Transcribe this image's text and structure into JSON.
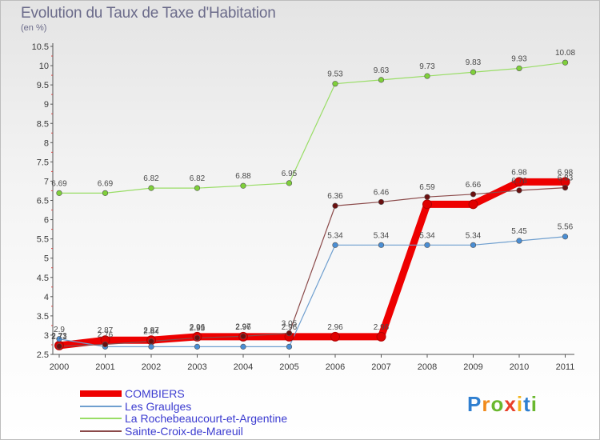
{
  "title": "Evolution du Taux de Taxe d'Habitation",
  "subtitle": "(en %)",
  "logo": {
    "text": "Proxiti",
    "colors": [
      "#2f7fd0",
      "#f08a1c",
      "#6ab82e",
      "#e8402a",
      "#f3b51c",
      "#2f7fd0",
      "#6ab82e"
    ]
  },
  "chart_data": {
    "type": "line",
    "x": [
      "2000",
      "2001",
      "2002",
      "2003",
      "2004",
      "2005",
      "2006",
      "2007",
      "2008",
      "2009",
      "2010",
      "2011"
    ],
    "ylim": [
      2.5,
      10.5
    ],
    "yticks": [
      "2.5",
      "3",
      "3.5",
      "4",
      "4.5",
      "5",
      "5.5",
      "6",
      "6.5",
      "7",
      "7.5",
      "8",
      "8.5",
      "9",
      "9.5",
      "10",
      "10.5"
    ],
    "grid": false,
    "legend_position": "bottom-left",
    "series": [
      {
        "name": "COMBIERS",
        "color": "#ee0000",
        "width": 9,
        "values": [
          2.73,
          2.87,
          2.87,
          2.96,
          2.96,
          2.96,
          2.96,
          2.96,
          6.4,
          6.4,
          6.98,
          6.98
        ],
        "labels": [
          "2.73",
          "2.87",
          "2.87",
          "2.96",
          "2.96",
          "2.96",
          "2.96",
          "2.96",
          "",
          "",
          "6.98",
          "6.98"
        ]
      },
      {
        "name": "Les Graulges",
        "color": "#6f9fcf",
        "width": 1.2,
        "values": [
          2.9,
          2.7,
          2.7,
          2.7,
          2.7,
          2.7,
          5.34,
          5.34,
          5.34,
          5.34,
          5.45,
          5.56
        ],
        "labels": [
          "2.9",
          "",
          "",
          "",
          "",
          "",
          "5.34",
          "5.34",
          "5.34",
          "5.34",
          "5.45",
          "5.56"
        ]
      },
      {
        "name": "La Rochebeaucourt-et-Argentine",
        "color": "#99dd66",
        "width": 1.2,
        "values": [
          6.69,
          6.69,
          6.82,
          6.82,
          6.88,
          6.95,
          9.53,
          9.63,
          9.73,
          9.83,
          9.93,
          10.08
        ],
        "labels": [
          "6.69",
          "6.69",
          "6.82",
          "6.82",
          "6.88",
          "6.95",
          "9.53",
          "9.63",
          "9.73",
          "9.83",
          "9.93",
          "10.08"
        ]
      },
      {
        "name": "Sainte-Croix-de-Mareuil",
        "color": "#8b4a4a",
        "width": 1.2,
        "values": [
          2.71,
          2.76,
          2.84,
          2.93,
          2.97,
          3.05,
          6.36,
          6.46,
          6.59,
          6.66,
          6.76,
          6.83
        ],
        "labels": [
          "2.71",
          "2.76",
          "2.84",
          "2.93",
          "2.97",
          "3.05",
          "6.36",
          "6.46",
          "6.59",
          "6.66",
          "6.76",
          "6.83"
        ]
      }
    ]
  }
}
